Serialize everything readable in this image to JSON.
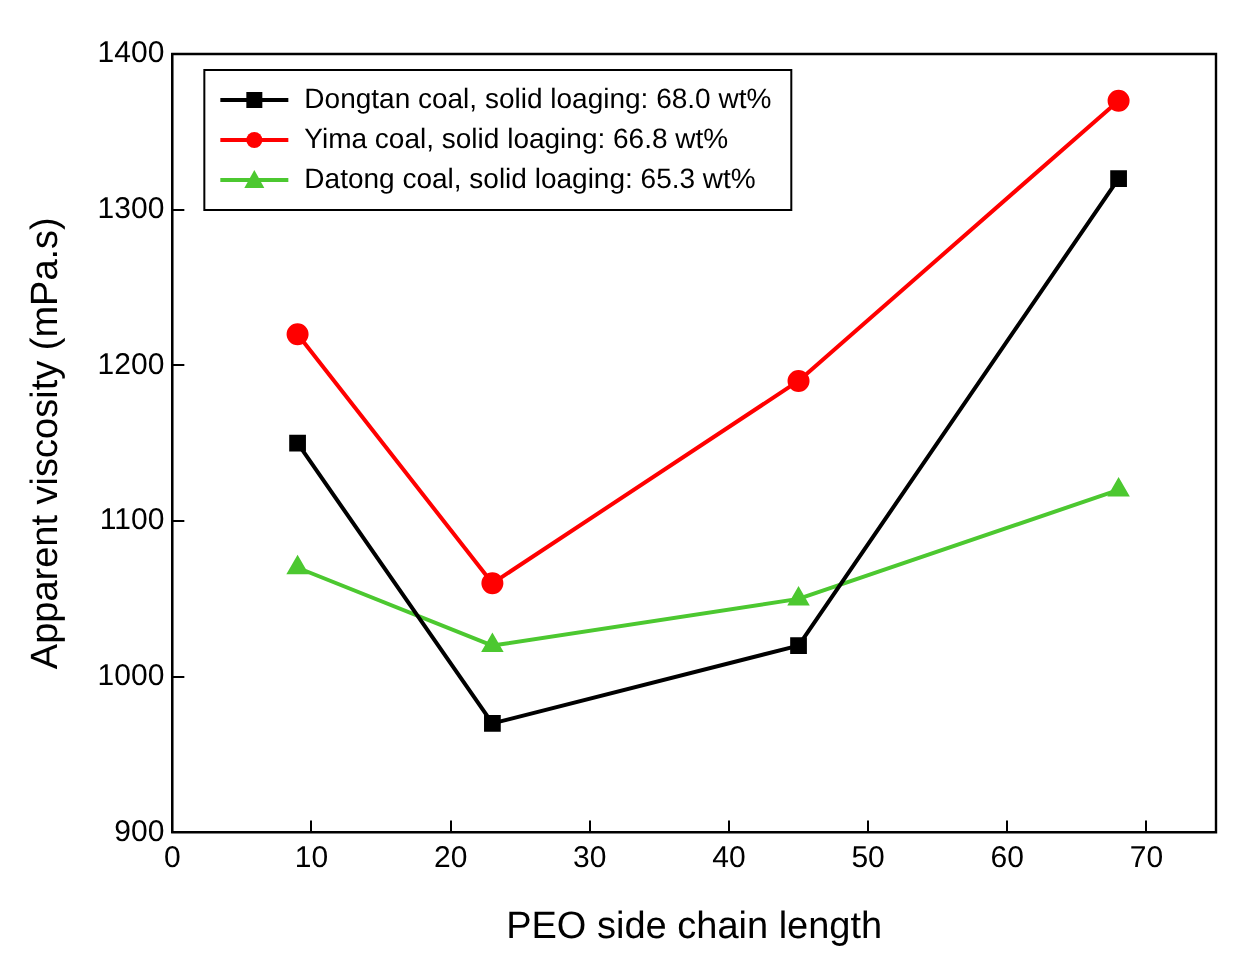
{
  "chart_data": {
    "type": "line",
    "xlabel": "PEO side chain length",
    "ylabel": "Apparent viscosity (mPa.s)",
    "xlim": [
      0,
      75
    ],
    "xticks": [
      0,
      10,
      20,
      30,
      40,
      50,
      60,
      70
    ],
    "ylim": [
      900,
      1400
    ],
    "yticks": [
      900,
      1000,
      1100,
      1200,
      1300,
      1400
    ],
    "grid": false,
    "legend": "top left",
    "line_style": "solid",
    "x": [
      9,
      23,
      45,
      68
    ],
    "series": [
      {
        "name": "Dongtan coal, solid loaging: 68.0 wt%",
        "color": "#000000",
        "marker": "square",
        "values": [
          1150,
          970,
          1020,
          1320
        ]
      },
      {
        "name": "Yima coal, solid loaging: 66.8 wt%",
        "color": "#ff0000",
        "marker": "circle",
        "values": [
          1220,
          1060,
          1190,
          1370
        ]
      },
      {
        "name": "Datong coal, solid loaging: 65.3 wt%",
        "color": "#4cc830",
        "marker": "triangle",
        "values": [
          1070,
          1020,
          1050,
          1120
        ]
      }
    ]
  }
}
